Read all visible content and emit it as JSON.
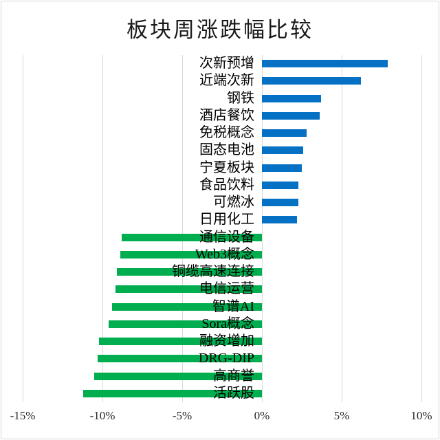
{
  "title": "板块周涨跌幅比较",
  "colors": {
    "positive_bar": "#0571c4",
    "negative_bar": "#00ad4f",
    "gridline": "#d9d9d9",
    "border": "#d6d6d6",
    "text": "#000000"
  },
  "chart_data": {
    "type": "bar",
    "orientation": "horizontal",
    "title": "板块周涨跌幅比较",
    "xlabel": "",
    "ylabel": "",
    "xlim": [
      -15,
      10
    ],
    "grid": "vertical",
    "legend": "none",
    "unit": "%",
    "xticks": [
      {
        "label": "-15%",
        "value": -15
      },
      {
        "label": "-10%",
        "value": -10
      },
      {
        "label": "-5%",
        "value": -5
      },
      {
        "label": "0%",
        "value": 0
      },
      {
        "label": "5%",
        "value": 5
      },
      {
        "label": "10%",
        "value": 10
      }
    ],
    "categories": [
      "次新预增",
      "近端次新",
      "钢铁",
      "酒店餐饮",
      "免税概念",
      "固态电池",
      "宁夏板块",
      "食品饮料",
      "可燃冰",
      "日用化工",
      "通信设备",
      "Web3概念",
      "铜缆高速连接",
      "电信运营",
      "智谱AI",
      "Sora概念",
      "融资增加",
      "DRG-DIP",
      "高商誉",
      "活跃股"
    ],
    "values": [
      7.9,
      6.2,
      3.7,
      3.6,
      2.8,
      2.6,
      2.5,
      2.3,
      2.3,
      2.2,
      -8.8,
      -8.9,
      -9.1,
      -9.2,
      -9.4,
      -9.6,
      -10.2,
      -10.3,
      -10.5,
      -11.2
    ]
  }
}
